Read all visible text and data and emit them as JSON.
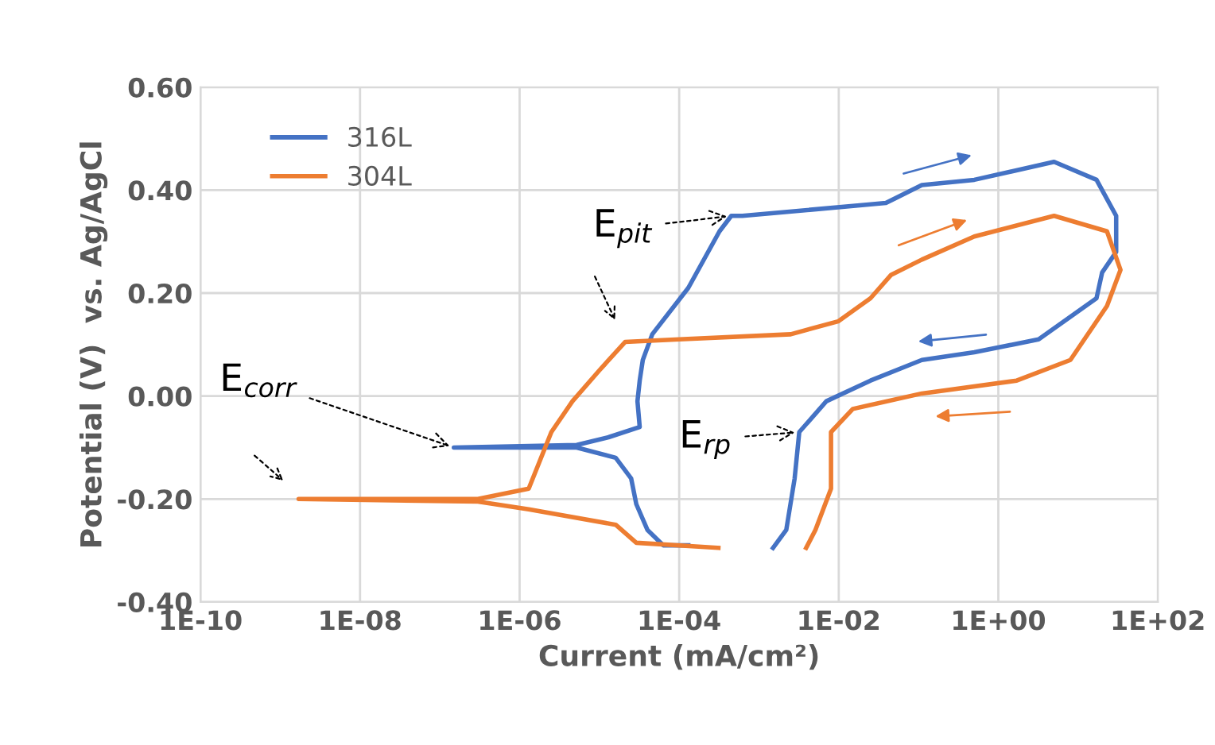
{
  "chart_data": {
    "type": "line",
    "xlabel": "Current (mA/cm²)",
    "ylabel": "Potential (V)  vs. Ag/AgCl",
    "log": "x",
    "xlim": [
      1e-10,
      100
    ],
    "ylim": [
      -0.4,
      0.6
    ],
    "xticks": [
      {
        "value": 1e-10,
        "label": "1E-10"
      },
      {
        "value": 1e-08,
        "label": "1E-08"
      },
      {
        "value": 1e-06,
        "label": "1E-06"
      },
      {
        "value": 0.0001,
        "label": "1E-04"
      },
      {
        "value": 0.01,
        "label": "1E-02"
      },
      {
        "value": 1,
        "label": "1E+00"
      },
      {
        "value": 100,
        "label": "1E+02"
      }
    ],
    "yticks": [
      {
        "value": -0.4,
        "label": "-0.40"
      },
      {
        "value": -0.2,
        "label": "-0.20"
      },
      {
        "value": 0,
        "label": "0.00"
      },
      {
        "value": 0.2,
        "label": "0.20"
      },
      {
        "value": 0.4,
        "label": "0.40"
      },
      {
        "value": 0.6,
        "label": "0.60"
      }
    ],
    "grid": true,
    "legend": "top left",
    "marker": "none",
    "line_style": "solid",
    "series": [
      {
        "name": "316L",
        "color": "#4472c4",
        "x": [
          0.00013,
          6.3e-05,
          4e-05,
          2.9e-05,
          2.5e-05,
          1.6e-05,
          5.2e-06,
          1.5e-07,
          5.2e-06,
          1.3e-05,
          3.2e-05,
          3e-05,
          3.2e-05,
          3.5e-05,
          4.6e-05,
          0.00013,
          0.00032,
          0.00045,
          0.00062,
          0.039,
          0.11,
          0.5,
          5,
          17,
          30,
          30,
          20,
          17,
          3.2,
          0.5,
          0.11,
          0.025,
          0.007,
          0.0032,
          0.0028,
          0.0022,
          0.0015
        ],
        "values": [
          -0.29,
          -0.29,
          -0.26,
          -0.21,
          -0.16,
          -0.12,
          -0.1,
          -0.1,
          -0.095,
          -0.08,
          -0.06,
          -0.01,
          0.03,
          0.07,
          0.12,
          0.21,
          0.32,
          0.35,
          0.35,
          0.375,
          0.41,
          0.42,
          0.455,
          0.42,
          0.35,
          0.28,
          0.24,
          0.19,
          0.11,
          0.085,
          0.07,
          0.03,
          -0.01,
          -0.07,
          -0.16,
          -0.26,
          -0.295
        ]
      },
      {
        "name": "304L",
        "color": "#ed7d31",
        "x": [
          0.00031,
          2.9e-05,
          1.6e-05,
          1.3e-06,
          3e-07,
          1.7e-09,
          3e-07,
          1.3e-06,
          2.5e-06,
          4.6e-06,
          1e-05,
          2.1e-05,
          0.0001,
          0.0025,
          0.0098,
          0.025,
          0.045,
          0.11,
          0.5,
          5,
          23,
          34,
          23,
          8,
          1.7,
          0.11,
          0.015,
          0.008,
          0.008,
          0.0051,
          0.0039
        ],
        "values": [
          -0.295,
          -0.285,
          -0.25,
          -0.22,
          -0.205,
          -0.2,
          -0.2,
          -0.18,
          -0.07,
          -0.01,
          0.05,
          0.105,
          0.11,
          0.12,
          0.145,
          0.19,
          0.235,
          0.265,
          0.31,
          0.35,
          0.32,
          0.245,
          0.175,
          0.07,
          0.03,
          0.005,
          -0.025,
          -0.07,
          -0.18,
          -0.26,
          -0.295
        ]
      }
    ],
    "annotations": [
      {
        "text": "E$_{corr}$",
        "x": 1.5e-07,
        "y": -0.1
      },
      {
        "text": "E$_{pit}$",
        "x": 0.00045,
        "y": 0.35
      },
      {
        "text": "E$_{rp}$",
        "x": 0.0032,
        "y": -0.07
      }
    ]
  }
}
